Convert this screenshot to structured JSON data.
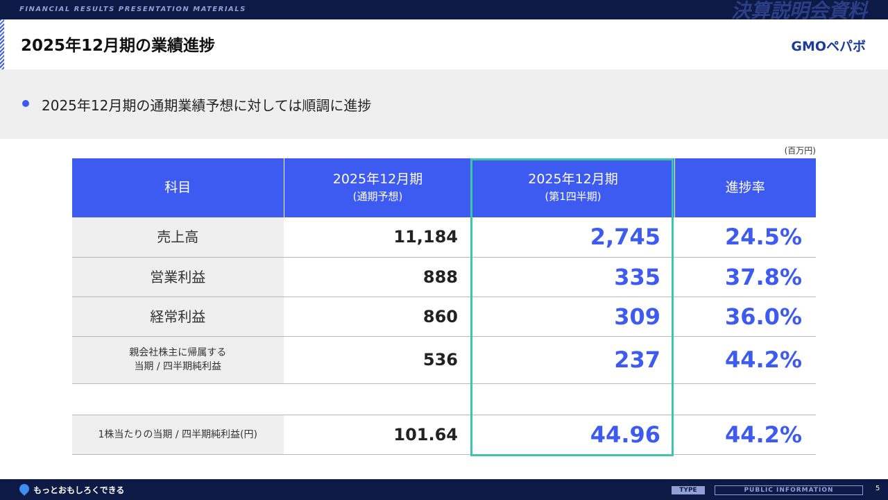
{
  "header": {
    "tagline": "FINANCIAL RESULTS PRESENTATION MATERIALS",
    "badge": "決算説明会資料",
    "title": "2025年12月期の業績進捗",
    "logo": "GMOペパボ"
  },
  "summary": {
    "bullet": "2025年12月期の通期業績予想に対しては順調に進捗"
  },
  "table": {
    "unit": "(百万円)",
    "columns": [
      [
        "科目"
      ],
      [
        "2025年12月期",
        "(通期予想)"
      ],
      [
        "2025年12月期",
        "(第1四半期)"
      ],
      [
        "進捗率"
      ]
    ],
    "rows": [
      {
        "item": [
          "売上高"
        ],
        "forecast": "11,184",
        "q1": "2,745",
        "progress": "24.5%"
      },
      {
        "item": [
          "営業利益"
        ],
        "forecast": "888",
        "q1": "335",
        "progress": "37.8%"
      },
      {
        "item": [
          "経常利益"
        ],
        "forecast": "860",
        "q1": "309",
        "progress": "36.0%"
      },
      {
        "item": [
          "親会社株主に帰属する",
          "当期 / 四半期純利益"
        ],
        "forecast": "536",
        "q1": "237",
        "progress": "44.2%"
      },
      {
        "item": [
          "1株当たりの当期 / 四半期純利益(円)"
        ],
        "forecast": "101.64",
        "q1": "44.96",
        "progress": "44.2%"
      }
    ]
  },
  "footer": {
    "slogan": "もっとおもしろくできる",
    "type": "TYPE",
    "classification": "PUBLIC INFORMATION",
    "page": "5"
  }
}
